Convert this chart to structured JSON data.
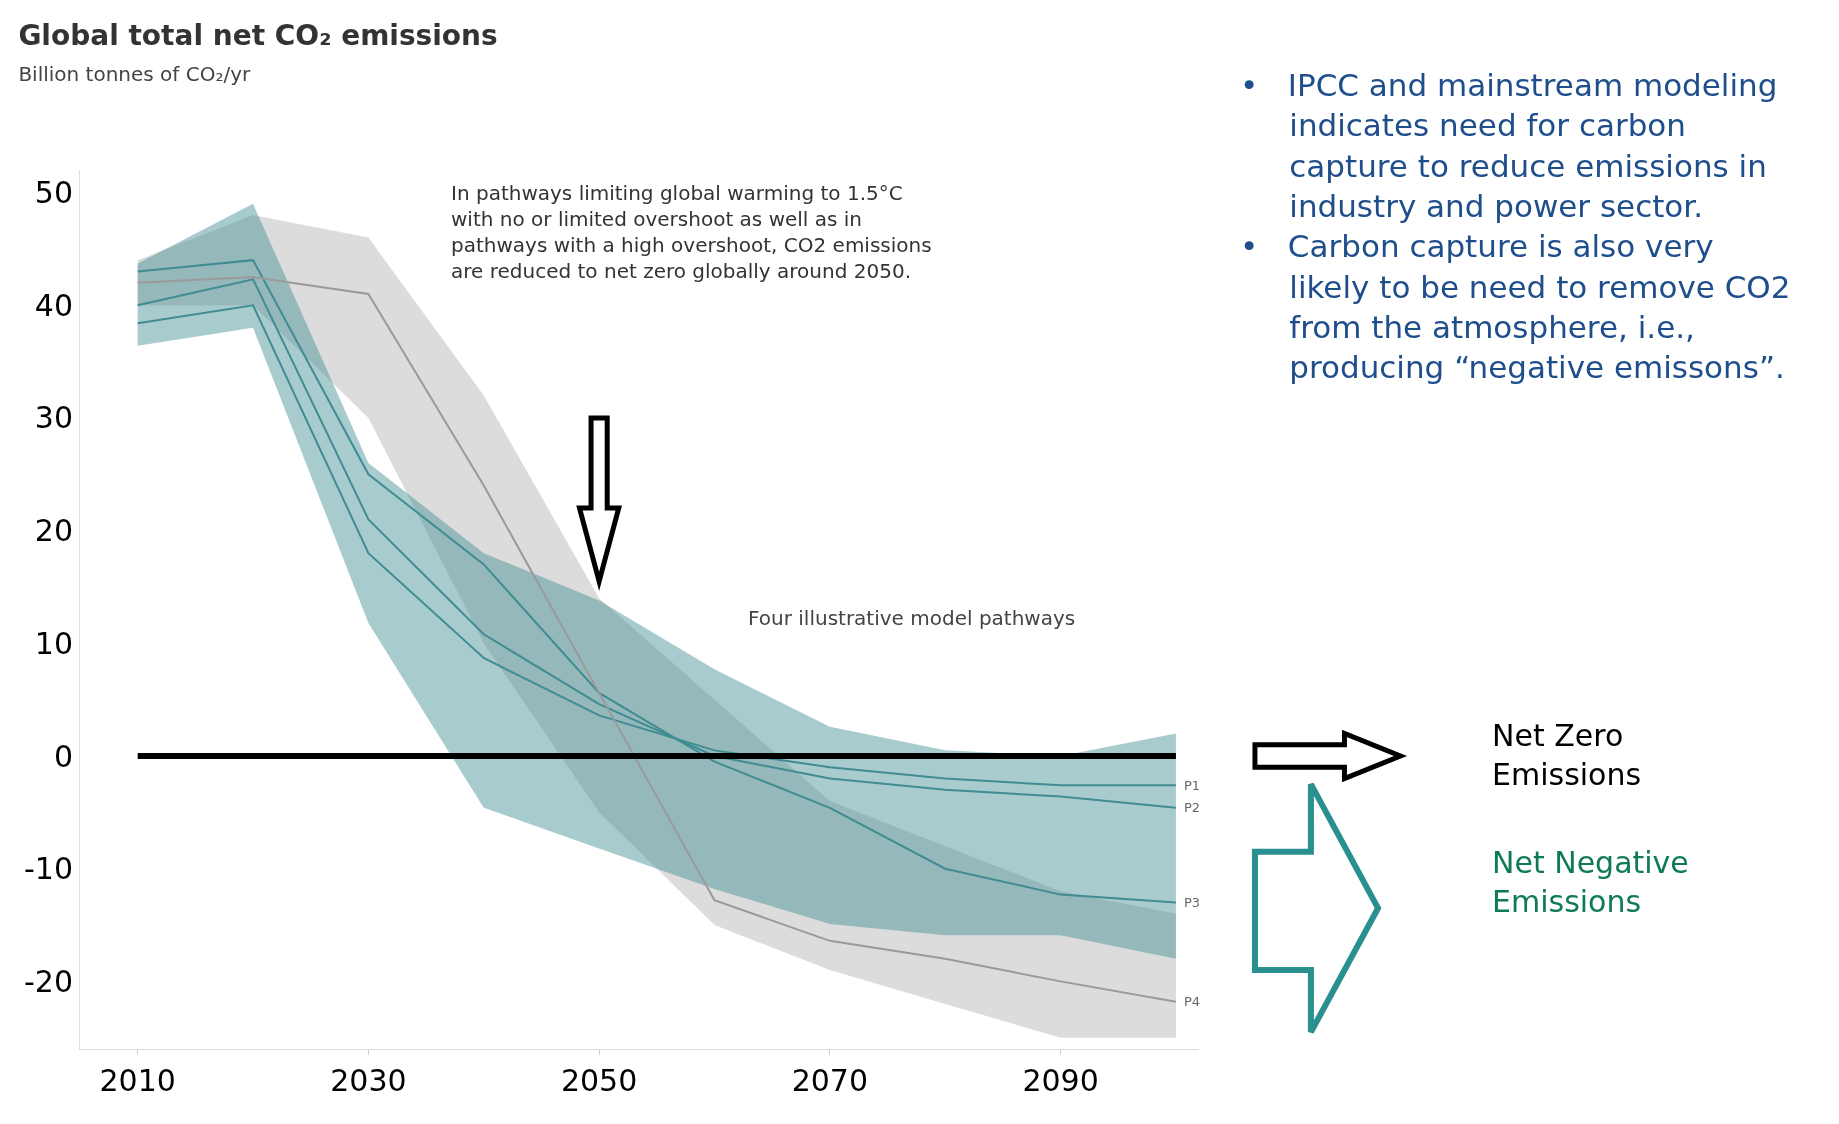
{
  "chart_data": {
    "type": "line",
    "title": "Global total net CO₂ emissions",
    "subtitle": "Billion tonnes of CO₂/yr",
    "x": [
      2010,
      2020,
      2030,
      2040,
      2050,
      2060,
      2070,
      2080,
      2090,
      2100
    ],
    "series": [
      {
        "name": "P1",
        "color": "#3f8c92",
        "values": [
          38.4,
          40,
          18,
          8.7,
          3.6,
          0.5,
          -1,
          -2,
          -2.6,
          -2.6
        ],
        "lower": [
          36.4,
          38,
          11.8,
          -4.6,
          -8.2,
          -11.8,
          -14.9,
          -15.9,
          -15.9,
          -18
        ],
        "upper": [
          43.7,
          49,
          26,
          18,
          13.8,
          7.7,
          2.6,
          0.5,
          0,
          2
        ]
      },
      {
        "name": "P2",
        "color": "#3f8c92",
        "values": [
          40,
          42.3,
          21,
          10.8,
          4.6,
          0,
          -2,
          -3,
          -3.6,
          -4.6
        ]
      },
      {
        "name": "P3",
        "color": "#3f8c92",
        "values": [
          43,
          44,
          25,
          17,
          5.6,
          -0.5,
          -4.6,
          -10,
          -12.3,
          -13
        ]
      },
      {
        "name": "P4",
        "color": "#9a9a9a",
        "values": [
          42,
          42.5,
          41,
          24,
          5.6,
          -12.8,
          -16.4,
          -18,
          -20,
          -21.8
        ],
        "lower": [
          40,
          40,
          30,
          10,
          -5,
          -15,
          -19,
          -22,
          -25,
          -25
        ],
        "upper": [
          44,
          48,
          46,
          32,
          14,
          5,
          -4,
          -8,
          -12,
          -14
        ]
      }
    ],
    "xlim": [
      2005,
      2102
    ],
    "ylim": [
      -26,
      52
    ],
    "xticks": [
      2010,
      2030,
      2050,
      2070,
      2090
    ],
    "yticks": [
      -20,
      -10,
      0,
      10,
      20,
      30,
      40,
      50
    ],
    "legend": false,
    "ref_lines": [
      {
        "axis": "y",
        "value": 0,
        "color": "#000000"
      }
    ],
    "annotations": [
      "In pathways limiting global warming to 1.5°C\nwith no or limited overshoot as well as in\npathways with a high overshoot, CO2 emissions\nare reduced to net zero globally around 2050.",
      "Four illustrative model pathways",
      "Net Negative\nEmissions",
      "Net Zero\nEmissions",
      "•   IPCC and mainstream modeling\n     indicates need for carbon\n     capture to reduce emissions in\n     industry and power sector.\n•   Carbon capture is also very\n     likely to be need to remove CO2\n     from the atmosphere, i.e.,\n     producing “negative emissons”."
    ]
  }
}
